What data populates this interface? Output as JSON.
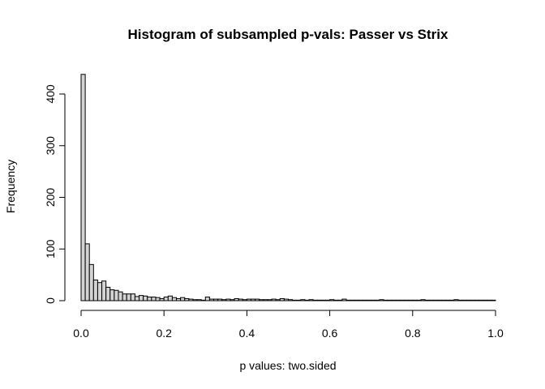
{
  "chart_data": {
    "type": "bar",
    "title": "Histogram of subsampled p-vals: Passer vs Strix",
    "xlabel": "p values: two.sided",
    "ylabel": "Frequency",
    "xlim": [
      0,
      1
    ],
    "ylim": [
      0,
      440
    ],
    "bin_width": 0.01,
    "grid": false,
    "xticks": [
      {
        "value": 0,
        "label": "0.0"
      },
      {
        "value": 0.2,
        "label": "0.2"
      },
      {
        "value": 0.4,
        "label": "0.4"
      },
      {
        "value": 0.6,
        "label": "0.6"
      },
      {
        "value": 0.8,
        "label": "0.8"
      },
      {
        "value": 1.0,
        "label": "1.0"
      }
    ],
    "yticks": [
      {
        "value": 0,
        "label": "0"
      },
      {
        "value": 100,
        "label": "100"
      },
      {
        "value": 200,
        "label": "200"
      },
      {
        "value": 300,
        "label": "300"
      },
      {
        "value": 400,
        "label": "400"
      }
    ],
    "values": [
      438,
      110,
      70,
      40,
      35,
      38,
      26,
      21,
      20,
      17,
      13,
      13,
      13,
      8,
      10,
      9,
      7,
      7,
      6,
      4,
      7,
      9,
      6,
      4,
      6,
      4,
      3,
      2,
      2,
      1,
      7,
      3,
      3,
      3,
      2,
      3,
      2,
      4,
      3,
      2,
      3,
      3,
      3,
      2,
      2,
      2,
      3,
      2,
      4,
      3,
      2,
      1,
      1,
      2,
      1,
      2,
      1,
      1,
      1,
      1,
      2,
      1,
      1,
      3,
      1,
      1,
      1,
      1,
      1,
      1,
      1,
      1,
      2,
      1,
      1,
      1,
      1,
      1,
      1,
      1,
      1,
      1,
      2,
      1,
      1,
      1,
      1,
      1,
      1,
      1,
      2,
      1,
      1,
      1,
      1,
      1,
      1,
      1,
      1,
      1
    ]
  }
}
